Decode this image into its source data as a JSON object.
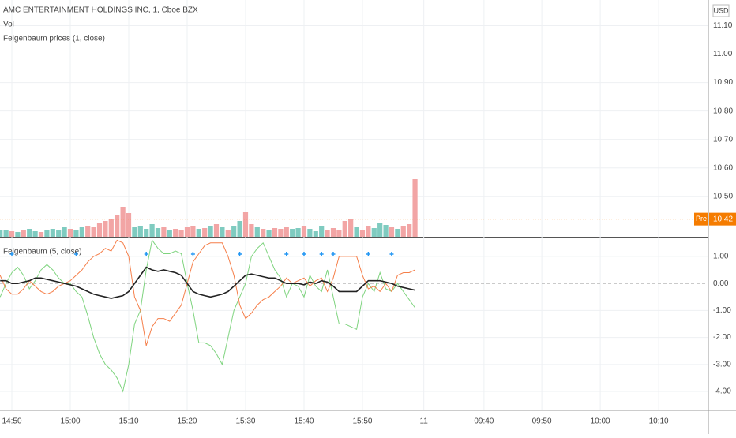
{
  "chart_data": {
    "type": "line",
    "title": "AMC ENTERTAINMENT HOLDINGS INC, 1, Cboe BZX",
    "volume_label": "Vol",
    "overlay_label": "Feigenbaum prices (1, close)",
    "indicator_label": "Feigenbaum (5, close)",
    "currency": "USD",
    "xlim": [
      -0.03,
      121.2
    ],
    "xticks": [
      {
        "value": 2,
        "label": "14:50"
      },
      {
        "value": 12,
        "label": "15:00"
      },
      {
        "value": 22,
        "label": "15:10"
      },
      {
        "value": 32,
        "label": "15:20"
      },
      {
        "value": 42,
        "label": "15:30"
      },
      {
        "value": 52,
        "label": "15:40"
      },
      {
        "value": 62,
        "label": "15:50"
      },
      {
        "value": 72.5,
        "label": "11"
      },
      {
        "value": 82.8,
        "label": "09:40"
      },
      {
        "value": 92.7,
        "label": "09:50"
      },
      {
        "value": 102.7,
        "label": "10:00"
      },
      {
        "value": 112.7,
        "label": "10:10"
      }
    ],
    "price_ylim": [
      10.358,
      11.19
    ],
    "price_yticks": [
      {
        "value": 11.1,
        "label": "11.10"
      },
      {
        "value": 11,
        "label": "11.00"
      },
      {
        "value": 10.9,
        "label": "10.90"
      },
      {
        "value": 10.8,
        "label": "10.80"
      },
      {
        "value": 10.7,
        "label": "10.70"
      },
      {
        "value": 10.6,
        "label": "10.60"
      },
      {
        "value": 10.5,
        "label": "10.50"
      }
    ],
    "pre_label": "Pre",
    "pre_price": {
      "value": 10.42,
      "label": "10.42"
    },
    "pre_color": "#f57c00",
    "volume": {
      "ylim": [
        0,
        100
      ],
      "values": [
        8,
        9,
        7,
        6,
        8,
        10,
        7,
        6,
        9,
        10,
        8,
        12,
        10,
        9,
        12,
        14,
        12,
        18,
        20,
        22,
        28,
        38,
        30,
        12,
        14,
        10,
        16,
        11,
        12,
        9,
        10,
        8,
        12,
        14,
        10,
        11,
        13,
        16,
        12,
        9,
        14,
        20,
        32,
        16,
        12,
        10,
        9,
        11,
        10,
        12,
        10,
        11,
        14,
        10,
        7,
        13,
        9,
        11,
        8,
        20,
        22,
        12,
        9,
        13,
        11,
        18,
        15,
        12,
        10,
        14,
        16,
        73
      ],
      "colors": [
        "#7fcbc0",
        "#7fcbc0",
        "#f2a5a5",
        "#7fcbc0",
        "#f2a5a5",
        "#7fcbc0",
        "#7fcbc0",
        "#f2a5a5",
        "#7fcbc0",
        "#7fcbc0",
        "#7fcbc0",
        "#7fcbc0",
        "#f2a5a5",
        "#7fcbc0",
        "#7fcbc0",
        "#f2a5a5",
        "#f2a5a5",
        "#f2a5a5",
        "#f2a5a5",
        "#f2a5a5",
        "#f2a5a5",
        "#f2a5a5",
        "#f2a5a5",
        "#7fcbc0",
        "#7fcbc0",
        "#7fcbc0",
        "#7fcbc0",
        "#7fcbc0",
        "#f2a5a5",
        "#7fcbc0",
        "#f2a5a5",
        "#f2a5a5",
        "#f2a5a5",
        "#f2a5a5",
        "#7fcbc0",
        "#f2a5a5",
        "#7fcbc0",
        "#f2a5a5",
        "#7fcbc0",
        "#f2a5a5",
        "#7fcbc0",
        "#7fcbc0",
        "#f2a5a5",
        "#f2a5a5",
        "#7fcbc0",
        "#f2a5a5",
        "#7fcbc0",
        "#f2a5a5",
        "#f2a5a5",
        "#f2a5a5",
        "#7fcbc0",
        "#7fcbc0",
        "#f2a5a5",
        "#7fcbc0",
        "#7fcbc0",
        "#7fcbc0",
        "#f2a5a5",
        "#f2a5a5",
        "#f2a5a5",
        "#f2a5a5",
        "#f2a5a5",
        "#7fcbc0",
        "#f2a5a5",
        "#f2a5a5",
        "#7fcbc0",
        "#7fcbc0",
        "#7fcbc0",
        "#f2a5a5",
        "#7fcbc0",
        "#f2a5a5",
        "#f2a5a5",
        "#f2a5a5"
      ]
    },
    "ylim": [
      -4.7,
      1.67
    ],
    "yticks": [
      {
        "value": 1,
        "label": "1.00"
      },
      {
        "value": 0,
        "label": "0.00"
      },
      {
        "value": -1,
        "label": "-1.00"
      },
      {
        "value": -2,
        "label": "-2.00"
      },
      {
        "value": -3,
        "label": "-3.00"
      },
      {
        "value": -4,
        "label": "-4.00"
      }
    ],
    "series": [
      {
        "color": "#7fd47f",
        "values": [
          -0.5,
          0,
          0.4,
          0.6,
          0.3,
          -0.2,
          0.1,
          0.5,
          0.7,
          0.5,
          0.2,
          0,
          0,
          -0.3,
          -0.5,
          -1.2,
          -2,
          -2.6,
          -3,
          -3.2,
          -3.5,
          -4,
          -3,
          -1.5,
          -1,
          0.5,
          1.6,
          1.3,
          1.1,
          1.1,
          1.2,
          1.1,
          0,
          -1,
          -2.2,
          -2.2,
          -2.3,
          -2.6,
          -3,
          -2,
          -1,
          -0.5,
          0,
          1,
          1.3,
          1.5,
          1,
          0.5,
          0.2,
          -0.5,
          0,
          -0.1,
          -0.5,
          0.3,
          -0.1,
          -0.3,
          0.5,
          -0.5,
          -1.5,
          -1.5,
          -1.6,
          -1.7,
          -0.5,
          0,
          -0.3,
          0.4,
          -0.2,
          -0.3,
          0,
          -0.3,
          -0.6,
          -0.9
        ]
      },
      {
        "color": "#f57f4a",
        "values": [
          0.3,
          -0.2,
          -0.4,
          -0.4,
          -0.2,
          0.1,
          -0.1,
          -0.3,
          -0.4,
          -0.3,
          -0.1,
          0,
          0.1,
          0.3,
          0.5,
          0.8,
          1,
          1.1,
          1.3,
          1.2,
          1.6,
          1.5,
          1,
          -0.5,
          -1,
          -2.3,
          -1.6,
          -1.3,
          -1.3,
          -1.4,
          -1.1,
          -0.8,
          0,
          0.8,
          1.1,
          1.4,
          1.5,
          1.5,
          1.5,
          1,
          0.3,
          -0.8,
          -1.3,
          -1.1,
          -0.8,
          -0.6,
          -0.5,
          -0.3,
          -0.1,
          0.2,
          0,
          0.1,
          0.2,
          -0.1,
          0.1,
          0.2,
          -0.3,
          0.2,
          1,
          1,
          1,
          1,
          0.3,
          -0.2,
          -0.1,
          -0.3,
          0,
          -0.3,
          0.3,
          0.4,
          0.4,
          0.5
        ]
      },
      {
        "color": "#222222",
        "values": [
          0.1,
          0.1,
          0,
          0,
          0.05,
          0.1,
          0.2,
          0.2,
          0.15,
          0.1,
          0.05,
          0,
          -0.05,
          -0.1,
          -0.2,
          -0.3,
          -0.4,
          -0.45,
          -0.5,
          -0.55,
          -0.5,
          -0.45,
          -0.3,
          0,
          0.3,
          0.6,
          0.5,
          0.45,
          0.5,
          0.45,
          0.4,
          0.3,
          0,
          -0.3,
          -0.4,
          -0.45,
          -0.5,
          -0.45,
          -0.4,
          -0.3,
          -0.1,
          0.1,
          0.3,
          0.35,
          0.3,
          0.25,
          0.2,
          0.2,
          0.1,
          0,
          0,
          0,
          -0.05,
          0.05,
          0,
          0.1,
          0.05,
          -0.1,
          -0.3,
          -0.3,
          -0.3,
          -0.3,
          -0.1,
          0.1,
          0.1,
          0.1,
          0.05,
          0,
          -0.1,
          -0.15,
          -0.2,
          -0.25
        ]
      }
    ],
    "signals": {
      "color": "#2196f3",
      "x": [
        2,
        13,
        25,
        33,
        41,
        49,
        52,
        55,
        57,
        63,
        67
      ]
    },
    "grid": true
  }
}
